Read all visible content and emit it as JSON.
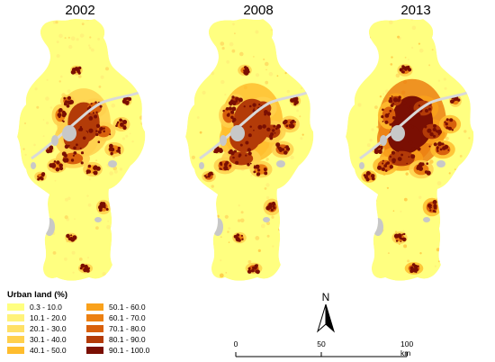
{
  "maps": [
    {
      "year": "2002",
      "intensity": 0.55
    },
    {
      "year": "2008",
      "intensity": 0.8
    },
    {
      "year": "2013",
      "intensity": 1.0
    }
  ],
  "legend": {
    "title": "Urban land (%)",
    "classes": [
      {
        "label": "0.3 - 10.0",
        "color": "#ffff80"
      },
      {
        "label": "10.1 - 20.0",
        "color": "#fff27a"
      },
      {
        "label": "20.1 - 30.0",
        "color": "#ffe066"
      },
      {
        "label": "30.1 - 40.0",
        "color": "#ffd04d"
      },
      {
        "label": "40.1 - 50.0",
        "color": "#ffbd2e"
      },
      {
        "label": "50.1 - 60.0",
        "color": "#f9a11b"
      },
      {
        "label": "60.1 - 70.0",
        "color": "#ec8012"
      },
      {
        "label": "70.1 - 80.0",
        "color": "#d8600c"
      },
      {
        "label": "80.1 - 90.0",
        "color": "#b33b08"
      },
      {
        "label": "90.1 - 100.0",
        "color": "#7a0f03"
      }
    ]
  },
  "north_arrow": {
    "label": "N"
  },
  "scale_bar": {
    "labels": [
      "0",
      "50",
      "100 km"
    ]
  },
  "colors": {
    "no_data": "#c8c8c8",
    "river": "#d9d9d9",
    "base": "#ffff80"
  }
}
